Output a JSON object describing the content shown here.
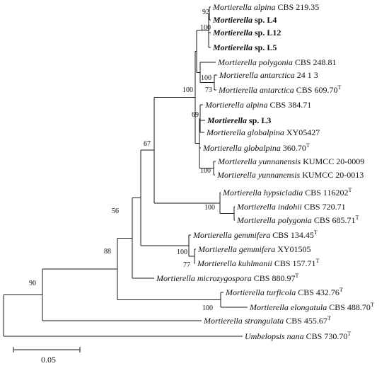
{
  "tree": {
    "taxa": [
      {
        "genus": "Mortierella",
        "epithet": "alpina",
        "strain": "CBS 219.35",
        "type": ""
      },
      {
        "genus": "Mortierella",
        "epithet": "sp.",
        "strain": "L4",
        "type": "",
        "bold": true
      },
      {
        "genus": "Mortierella",
        "epithet": "sp.",
        "strain": "L12",
        "type": "",
        "bold": true
      },
      {
        "genus": "Mortierella",
        "epithet": "sp.",
        "strain": "L5",
        "type": "",
        "bold": true
      },
      {
        "genus": "Mortierella",
        "epithet": "polygonia",
        "strain": "CBS 248.81",
        "type": ""
      },
      {
        "genus": "Mortierella",
        "epithet": "antarctica",
        "strain": "24 1 3",
        "type": ""
      },
      {
        "genus": "Mortierella",
        "epithet": "antarctica",
        "strain": "CBS 609.70",
        "type": "T"
      },
      {
        "genus": "Mortierella",
        "epithet": "alpina",
        "strain": "CBS 384.71",
        "type": ""
      },
      {
        "genus": "Mortierella",
        "epithet": "sp.",
        "strain": "L3",
        "type": "",
        "bold": true
      },
      {
        "genus": "Mortierella",
        "epithet": "globalpina",
        "strain": "XY05427",
        "type": ""
      },
      {
        "genus": "Mortierella",
        "epithet": "globalpina",
        "strain": "360.70",
        "type": "T"
      },
      {
        "genus": "Mortierella",
        "epithet": "yunnanensis",
        "strain": "KUMCC 20-0009",
        "type": ""
      },
      {
        "genus": "Mortierella",
        "epithet": "yunnanensis",
        "strain": "KUMCC 20-0013",
        "type": ""
      },
      {
        "genus": "Mortierella",
        "epithet": "hypsicladia",
        "strain": "CBS 116202",
        "type": "T"
      },
      {
        "genus": "Mortierella",
        "epithet": "indohii",
        "strain": "CBS 720.71",
        "type": ""
      },
      {
        "genus": "Mortierella",
        "epithet": "polygonia",
        "strain": "CBS 685.71",
        "type": "T"
      },
      {
        "genus": "Mortierella",
        "epithet": "gemmifera",
        "strain": "CBS 134.45",
        "type": "T"
      },
      {
        "genus": "Mortierella",
        "epithet": "gemmifera",
        "strain": "XY01505",
        "type": ""
      },
      {
        "genus": "Mortierella",
        "epithet": "kuhlmanii",
        "strain": "CBS 157.71",
        "type": "T"
      },
      {
        "genus": "Mortierella",
        "epithet": "microzygospora",
        "strain": "CBS 880.97",
        "type": "T"
      },
      {
        "genus": "Mortierella",
        "epithet": "turficola",
        "strain": "CBS 432.76",
        "type": "T"
      },
      {
        "genus": "Mortierella",
        "epithet": "elongatula",
        "strain": "CBS 488.70",
        "type": "T"
      },
      {
        "genus": "Mortierella",
        "epithet": "strangulata",
        "strain": "CBS 455.67",
        "type": "T"
      },
      {
        "genus": "Umbelopsis",
        "epithet": "nana",
        "strain": "CBS 730.70",
        "type": "T"
      }
    ],
    "bootstrap": [
      "92",
      "100",
      "100",
      "73",
      "100",
      "69",
      "100",
      "67",
      "100",
      "56",
      "100",
      "77",
      "88",
      "100",
      "90"
    ],
    "scale_label": "0.05"
  }
}
